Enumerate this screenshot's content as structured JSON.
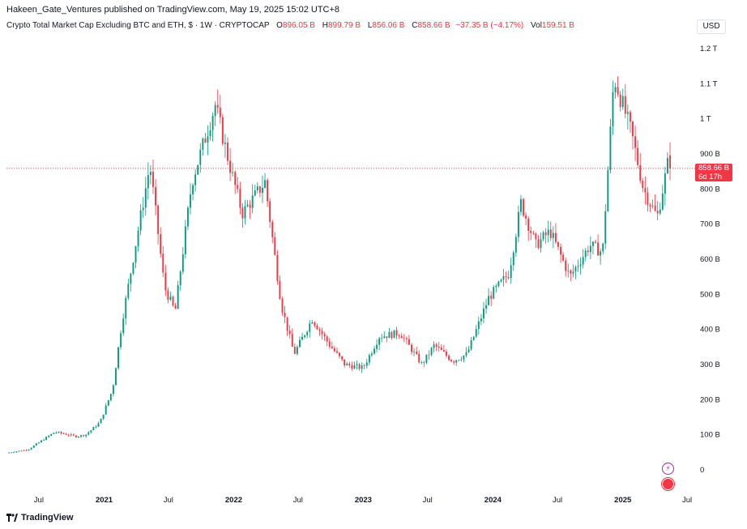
{
  "publisher_line": "Hakeen_Gate_Ventures published on TradingView.com, May 19, 2025 15:02 UTC+8",
  "legend": {
    "symbol": "Crypto Total Market Cap Excluding BTC and ETH, $ · 1W · CRYPTOCAP",
    "open_key": "O",
    "open": "896.05 B",
    "high_key": "H",
    "high": "899.79 B",
    "low_key": "L",
    "low": "856.06 B",
    "close_key": "C",
    "close": "858.66 B",
    "change": "−37.35 B (−4.17%)",
    "vol_key": "Vol",
    "vol": "159.51 B"
  },
  "currency": "USD",
  "last_price": {
    "value": "858.66 B",
    "countdown": "6d 17h"
  },
  "brand": "TradingView",
  "colors": {
    "up": "#089981",
    "down": "#f23645",
    "text": "#131722",
    "price_line": "#f23645"
  },
  "chart_data": {
    "type": "candlestick",
    "y_axis": {
      "unit": "USD",
      "range": [
        0,
        1200
      ],
      "ticks": [
        {
          "value": 0,
          "label": "0"
        },
        {
          "value": 100,
          "label": "100 B"
        },
        {
          "value": 200,
          "label": "200 B"
        },
        {
          "value": 300,
          "label": "300 B"
        },
        {
          "value": 400,
          "label": "400 B"
        },
        {
          "value": 500,
          "label": "500 B"
        },
        {
          "value": 600,
          "label": "600 B"
        },
        {
          "value": 700,
          "label": "700 B"
        },
        {
          "value": 800,
          "label": "800 B"
        },
        {
          "value": 900,
          "label": "900 B"
        },
        {
          "value": 1000,
          "label": "1 T"
        },
        {
          "value": 1100,
          "label": "1.1 T"
        },
        {
          "value": 1200,
          "label": "1.2 T"
        }
      ]
    },
    "x_axis": {
      "range": [
        "2020-04-01",
        "2025-07-10"
      ],
      "ticks": [
        {
          "date": "2020-07-01",
          "label": "Jul",
          "year": false
        },
        {
          "date": "2021-01-01",
          "label": "2021",
          "year": true
        },
        {
          "date": "2021-07-01",
          "label": "Jul",
          "year": false
        },
        {
          "date": "2022-01-01",
          "label": "2022",
          "year": true
        },
        {
          "date": "2022-07-01",
          "label": "Jul",
          "year": false
        },
        {
          "date": "2023-01-01",
          "label": "2023",
          "year": true
        },
        {
          "date": "2023-07-01",
          "label": "Jul",
          "year": false
        },
        {
          "date": "2024-01-01",
          "label": "2024",
          "year": true
        },
        {
          "date": "2024-07-01",
          "label": "Jul",
          "year": false
        },
        {
          "date": "2025-01-01",
          "label": "2025",
          "year": true
        },
        {
          "date": "2025-07-01",
          "label": "Jul",
          "year": false
        }
      ]
    },
    "interval": "1W",
    "last_close": 858.66,
    "price_path": [
      [
        "2020-04-01",
        48
      ],
      [
        "2020-06-01",
        58
      ],
      [
        "2020-08-15",
        108
      ],
      [
        "2020-10-15",
        95
      ],
      [
        "2020-11-10",
        100
      ],
      [
        "2020-12-20",
        135
      ],
      [
        "2021-01-25",
        230
      ],
      [
        "2021-02-20",
        420
      ],
      [
        "2021-04-01",
        650
      ],
      [
        "2021-05-10",
        870
      ],
      [
        "2021-06-20",
        520
      ],
      [
        "2021-07-20",
        450
      ],
      [
        "2021-09-05",
        820
      ],
      [
        "2021-11-10",
        1040
      ],
      [
        "2021-12-20",
        870
      ],
      [
        "2022-01-25",
        730
      ],
      [
        "2022-03-30",
        820
      ],
      [
        "2022-05-15",
        470
      ],
      [
        "2022-06-20",
        330
      ],
      [
        "2022-08-10",
        430
      ],
      [
        "2022-09-25",
        360
      ],
      [
        "2022-11-10",
        300
      ],
      [
        "2022-12-31",
        290
      ],
      [
        "2023-02-15",
        380
      ],
      [
        "2023-04-15",
        390
      ],
      [
        "2023-06-15",
        300
      ],
      [
        "2023-07-20",
        355
      ],
      [
        "2023-09-10",
        310
      ],
      [
        "2023-10-20",
        330
      ],
      [
        "2023-12-20",
        490
      ],
      [
        "2024-02-15",
        560
      ],
      [
        "2024-03-20",
        760
      ],
      [
        "2024-05-01",
        640
      ],
      [
        "2024-06-10",
        680
      ],
      [
        "2024-08-05",
        550
      ],
      [
        "2024-09-30",
        640
      ],
      [
        "2024-11-05",
        620
      ],
      [
        "2024-12-07",
        1120
      ],
      [
        "2025-01-25",
        960
      ],
      [
        "2025-02-28",
        800
      ],
      [
        "2025-04-08",
        720
      ],
      [
        "2025-05-12",
        896
      ],
      [
        "2025-05-19",
        858.66
      ]
    ]
  }
}
